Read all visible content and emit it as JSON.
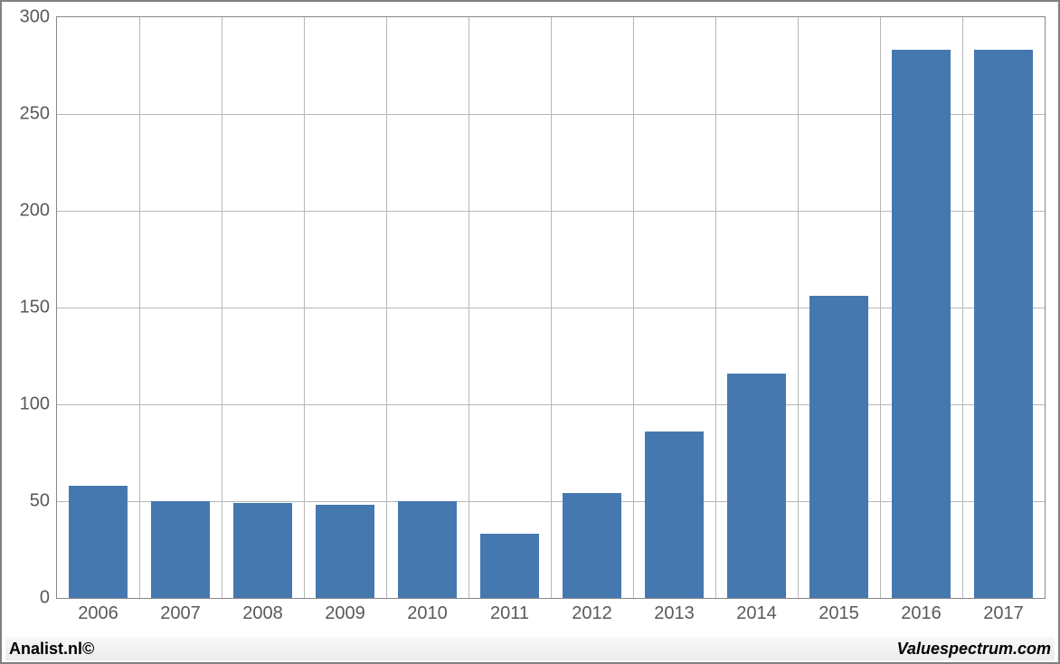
{
  "chart": {
    "type": "bar",
    "categories": [
      "2006",
      "2007",
      "2008",
      "2009",
      "2010",
      "2011",
      "2012",
      "2013",
      "2014",
      "2015",
      "2016",
      "2017"
    ],
    "values": [
      58,
      50,
      49,
      48,
      50,
      33,
      54,
      86,
      116,
      156,
      283,
      283
    ],
    "bar_color": "#4678b0",
    "background_color": "#ffffff",
    "grid_color": "#b7b7b7",
    "axis_color": "#888888",
    "y_min": 0,
    "y_max": 300,
    "y_tick_step": 50,
    "y_ticks": [
      "0",
      "50",
      "100",
      "150",
      "200",
      "250",
      "300"
    ],
    "bar_width_ratio": 0.72,
    "label_fontsize": 20,
    "label_color": "#595959"
  },
  "footer": {
    "left": "Analist.nl©",
    "right": "Valuespectrum.com"
  }
}
